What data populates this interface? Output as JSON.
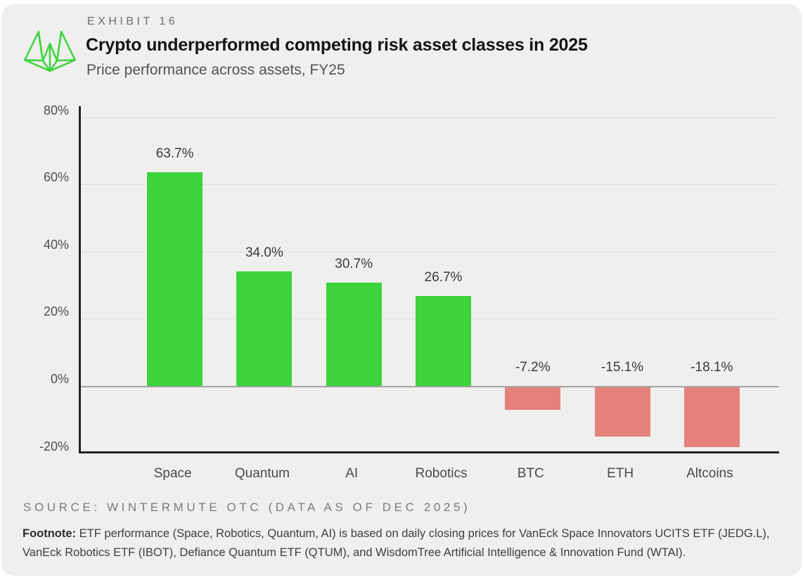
{
  "header": {
    "exhibit_label": "EXHIBIT 16",
    "title": "Crypto underperformed competing risk asset classes in 2025",
    "subtitle": "Price performance across assets, FY25",
    "logo": "wintermute-logo"
  },
  "chart_data": {
    "type": "bar",
    "title": "Crypto underperformed competing risk asset classes in 2025",
    "subtitle": "Price performance across assets, FY25",
    "categories": [
      "Space",
      "Quantum",
      "AI",
      "Robotics",
      "BTC",
      "ETH",
      "Altcoins"
    ],
    "values": [
      63.7,
      34.0,
      30.7,
      26.7,
      -7.2,
      -15.1,
      -18.1
    ],
    "value_labels": [
      "63.7%",
      "34.0%",
      "30.7%",
      "26.7%",
      "-7.2%",
      "-15.1%",
      "-18.1%"
    ],
    "xlabel": "",
    "ylabel": "",
    "y_ticks": [
      80,
      60,
      40,
      20,
      0,
      -20
    ],
    "y_tick_labels": [
      "80%",
      "60%",
      "40%",
      "20%",
      "0%",
      "-20%"
    ],
    "ylim": [
      -20,
      83
    ],
    "grid": true,
    "legend": false,
    "colors": {
      "positive": "#3cd33c",
      "negative": "#e4817d",
      "gridline": "#dddddd",
      "zero_line": "#a3a3a3",
      "axis": "#222222",
      "background": "#efefee",
      "logo_green": "#3dd33c"
    }
  },
  "footer": {
    "source": "SOURCE: WINTERMUTE OTC (DATA AS OF DEC 2025)",
    "footnote_label": "Footnote:",
    "footnote_text": "ETF performance (Space, Robotics, Quantum, AI) is based on daily closing prices for VanEck Space Innovators UCITS ETF (JEDG.L), VanEck Robotics ETF (IBOT), Defiance Quantum ETF (QTUM), and WisdomTree Artificial Intelligence & Innovation Fund (WTAI)."
  }
}
